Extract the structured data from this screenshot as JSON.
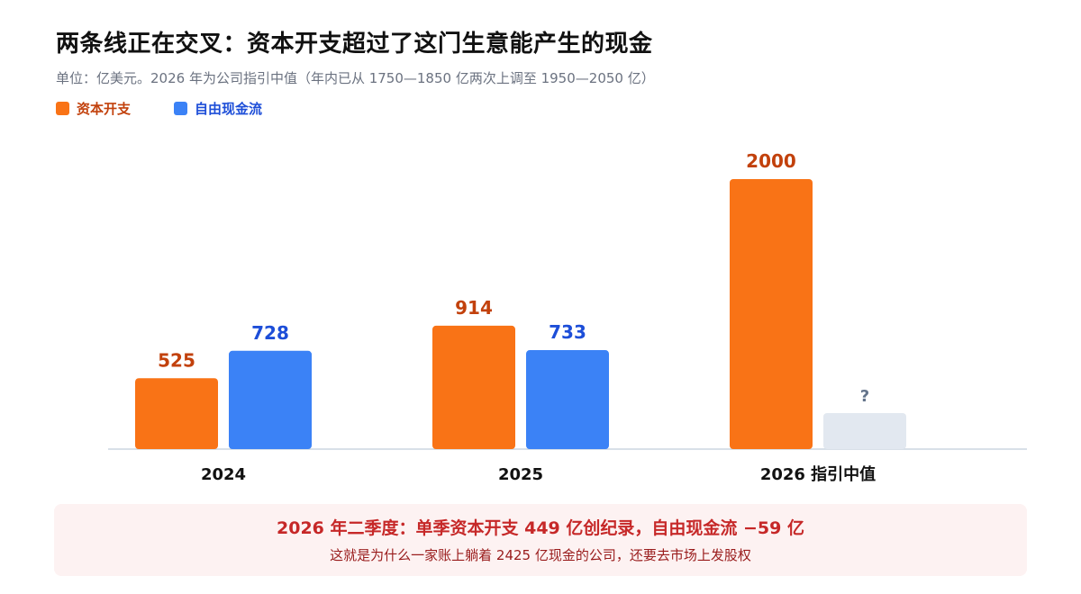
{
  "title": "两条线正在交叉：资本开支超过了这门生意能产生的现金",
  "subtitle": "单位：亿美元。2026 年为公司指引中值（年内已从 1750—1850 亿两次上调至 1950—2050 亿）",
  "callout": {
    "main": "2026 年二季度：单季资本开支 449 亿创纪录，自由现金流 −59 亿",
    "sub": "这就是为什么一家账上躺着 2425 亿现金的公司，还要去市场上发股权"
  },
  "colors": {
    "capex": "#f97316",
    "capex_label": "#c2410c",
    "fcf": "#3b82f6",
    "fcf_label": "#1d4ed8",
    "unknown": "#e2e8f0",
    "unknown_label": "#64748b",
    "axis": "#cbd5e1"
  },
  "chart_data": {
    "type": "bar",
    "categories": [
      "2024",
      "2025",
      "2026 指引中值"
    ],
    "series": [
      {
        "name": "资本开支",
        "values": [
          525,
          914,
          2000
        ],
        "labels": [
          "525",
          "914",
          "2000"
        ]
      },
      {
        "name": "自由现金流",
        "values": [
          728,
          733,
          null
        ],
        "labels": [
          "728",
          "733",
          "?"
        ]
      }
    ],
    "legend_position": "top-left",
    "grid": false,
    "ylim": [
      0,
      2000
    ]
  }
}
